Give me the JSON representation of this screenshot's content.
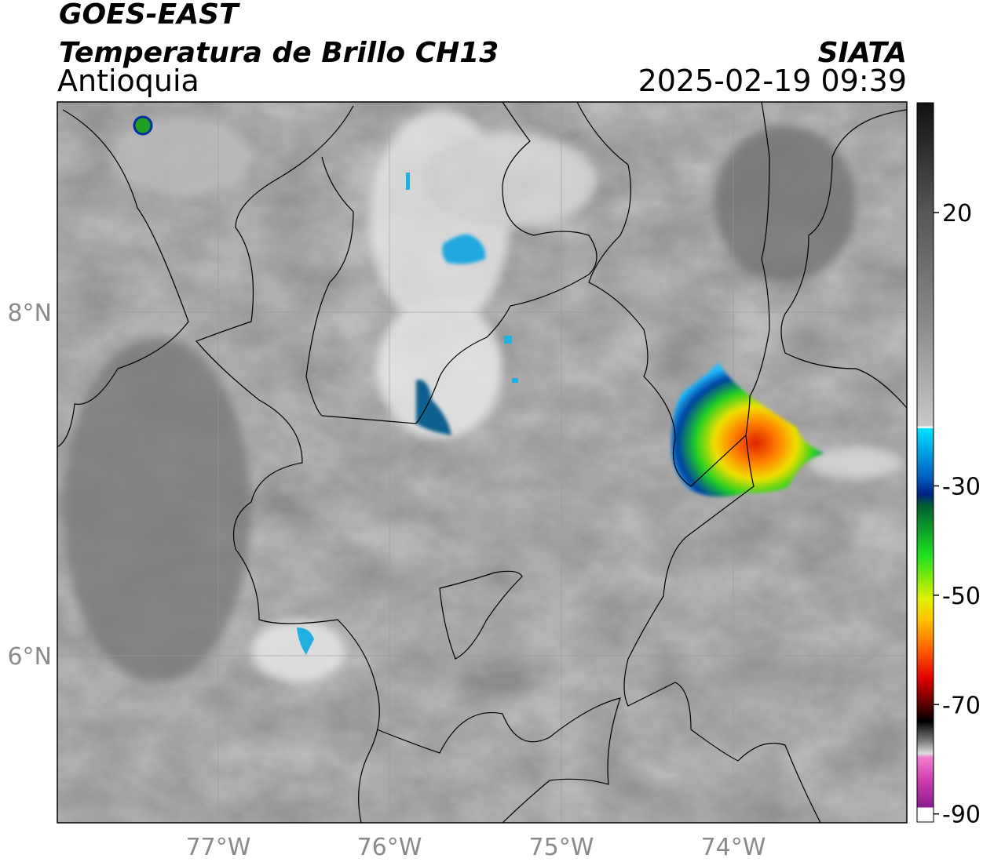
{
  "header": {
    "title": "GOES-EAST",
    "subtitle": "Temperatura de Brillo CH13",
    "region": "Antioquia",
    "source": "SIATA",
    "datetime": "2025-02-19 09:39"
  },
  "map": {
    "lat_ticks": [
      "8°N",
      "6°N"
    ],
    "lon_ticks": [
      "77°W",
      "76°W",
      "75°W",
      "74°W"
    ]
  },
  "colorbar": {
    "ticks": [
      20,
      -30,
      -50,
      -70,
      -90
    ]
  }
}
